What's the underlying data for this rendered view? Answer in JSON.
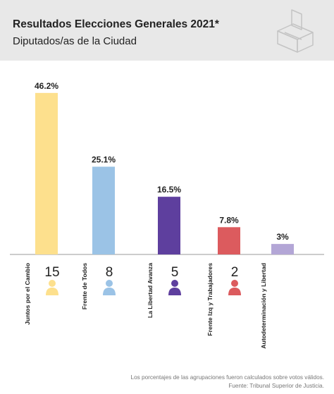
{
  "header": {
    "title": "Resultados Elecciones Generales 2021*",
    "subtitle": "Diputados/as de la Ciudad",
    "icon": "ballot-box-icon"
  },
  "chart_data": {
    "type": "bar",
    "categories": [
      "Juntos por el Cambio",
      "Frente de Todos",
      "La Libertad Avanza",
      "Frente Izq y Trabajadores",
      "Autodeterminación y Libertad"
    ],
    "values": [
      46.2,
      25.1,
      16.5,
      7.8,
      3
    ],
    "value_labels": [
      "46.2%",
      "25.1%",
      "16.5%",
      "7.8%",
      "3%"
    ],
    "seats": [
      15,
      8,
      5,
      2,
      null
    ],
    "colors": [
      "#fde08d",
      "#9bc3e6",
      "#5e3f9e",
      "#dc5b5e",
      "#b3a6d6"
    ],
    "ylim": [
      0,
      50
    ],
    "grid": false
  },
  "footer": {
    "line1": "Los porcentajes de las agrupaciones fueron calculados sobre votos válidos.",
    "line2": "Fuente: Tribunal Superior de Justicia."
  }
}
